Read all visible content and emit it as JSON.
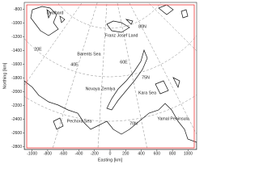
{
  "chart_data": {
    "type": "map",
    "xlabel": "Easting [km]",
    "ylabel": "Northing [km]",
    "xlim": [
      -1100,
      1110
    ],
    "ylim": [
      -2840,
      -700
    ],
    "xticks": [
      -1000,
      -800,
      -600,
      -400,
      -200,
      0,
      200,
      400,
      600,
      800,
      1000
    ],
    "yticks": [
      -800,
      -1000,
      -1200,
      -1400,
      -1600,
      -1800,
      -2000,
      -2200,
      -2400,
      -2600,
      -2800
    ],
    "annotations": [
      "Svalbard",
      "Franz Josef Land",
      "80N",
      "20E",
      "Barents Sea",
      "60E",
      "40E",
      "75N",
      "Kara Sea",
      "Novaya Zemlya",
      "Yamal Peninsula",
      "Pechora Sea",
      "70N"
    ]
  }
}
